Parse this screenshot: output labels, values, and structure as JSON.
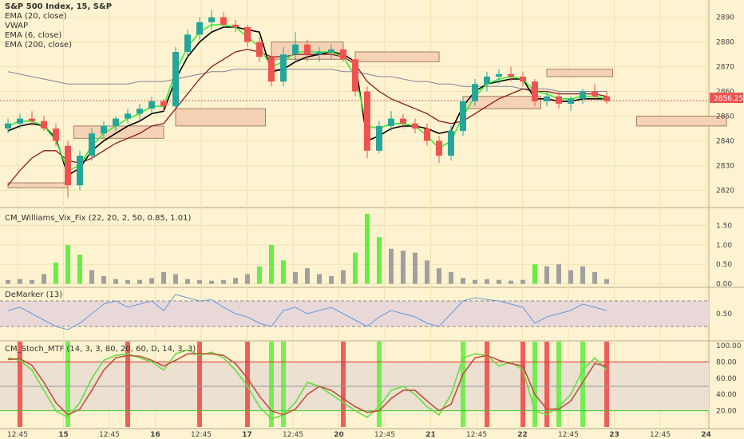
{
  "chart_data": {
    "type": "candlestick",
    "colors": {
      "background": "#fdf3d0",
      "grid": "#f0e2b0",
      "up": "#26a69a",
      "down": "#ef5350",
      "ema20": "#33ee33",
      "vwap": "#000000",
      "ema200": "#8a7f9a",
      "ema200_line": "#8b1a1a",
      "zone_fill": "#f6d2b4",
      "zone_stroke": "#a08060",
      "vix_green": "#66ee44",
      "vix_gray": "#a0a0a0",
      "price_label_bg": "#ef5350",
      "stoch_k": "#66dd44",
      "stoch_d": "#c05040",
      "stoch_up_bar": "#66ee44",
      "stoch_down_bar": "#ee4444",
      "demarker_line": "#6a9ad8",
      "band_fill": "#e8d8d8"
    },
    "x_tick_labels": [
      "12:45",
      "15",
      "12:45",
      "16",
      "12:45",
      "17",
      "12:45",
      "20",
      "12:45",
      "21",
      "12:45",
      "22",
      "12:45",
      "23",
      "12:45",
      "24"
    ],
    "x_tick_bold": [
      false,
      true,
      false,
      true,
      false,
      true,
      false,
      true,
      false,
      true,
      false,
      true,
      false,
      true,
      false,
      true
    ],
    "price_panel": {
      "title": "S&P 500 Index, 15, S&P",
      "indicators": [
        "EMA (20, close)",
        "VWAP",
        "EMA (6, close)",
        "EMA (200, close)"
      ],
      "y_ticks": [
        2820,
        2830,
        2840,
        2850,
        2860,
        2870,
        2880,
        2890
      ],
      "ylim": [
        2813,
        2897
      ],
      "last_price": "2856.25",
      "candles": [
        {
          "o": 2845,
          "h": 2849,
          "l": 2843,
          "c": 2847
        },
        {
          "o": 2847,
          "h": 2851,
          "l": 2845,
          "c": 2849
        },
        {
          "o": 2849,
          "h": 2852,
          "l": 2846,
          "c": 2848
        },
        {
          "o": 2848,
          "h": 2850,
          "l": 2844,
          "c": 2845
        },
        {
          "o": 2845,
          "h": 2847,
          "l": 2838,
          "c": 2840
        },
        {
          "o": 2838,
          "h": 2840,
          "l": 2817,
          "c": 2822
        },
        {
          "o": 2822,
          "h": 2836,
          "l": 2820,
          "c": 2834
        },
        {
          "o": 2834,
          "h": 2845,
          "l": 2832,
          "c": 2843
        },
        {
          "o": 2843,
          "h": 2848,
          "l": 2841,
          "c": 2846
        },
        {
          "o": 2846,
          "h": 2850,
          "l": 2844,
          "c": 2849
        },
        {
          "o": 2849,
          "h": 2853,
          "l": 2847,
          "c": 2851
        },
        {
          "o": 2851,
          "h": 2855,
          "l": 2848,
          "c": 2853
        },
        {
          "o": 2853,
          "h": 2858,
          "l": 2851,
          "c": 2856
        },
        {
          "o": 2856,
          "h": 2857,
          "l": 2852,
          "c": 2854
        },
        {
          "o": 2854,
          "h": 2878,
          "l": 2853,
          "c": 2876
        },
        {
          "o": 2876,
          "h": 2885,
          "l": 2874,
          "c": 2883
        },
        {
          "o": 2883,
          "h": 2890,
          "l": 2881,
          "c": 2888
        },
        {
          "o": 2888,
          "h": 2893,
          "l": 2885,
          "c": 2890
        },
        {
          "o": 2890,
          "h": 2892,
          "l": 2886,
          "c": 2887
        },
        {
          "o": 2887,
          "h": 2889,
          "l": 2884,
          "c": 2886
        },
        {
          "o": 2886,
          "h": 2887,
          "l": 2878,
          "c": 2880
        },
        {
          "o": 2880,
          "h": 2882,
          "l": 2872,
          "c": 2874
        },
        {
          "o": 2874,
          "h": 2876,
          "l": 2862,
          "c": 2864
        },
        {
          "o": 2864,
          "h": 2878,
          "l": 2862,
          "c": 2875
        },
        {
          "o": 2875,
          "h": 2884,
          "l": 2872,
          "c": 2879
        },
        {
          "o": 2879,
          "h": 2881,
          "l": 2872,
          "c": 2875
        },
        {
          "o": 2875,
          "h": 2878,
          "l": 2872,
          "c": 2876
        },
        {
          "o": 2876,
          "h": 2879,
          "l": 2873,
          "c": 2877
        },
        {
          "o": 2877,
          "h": 2878,
          "l": 2872,
          "c": 2873
        },
        {
          "o": 2873,
          "h": 2874,
          "l": 2858,
          "c": 2860
        },
        {
          "o": 2860,
          "h": 2862,
          "l": 2833,
          "c": 2836
        },
        {
          "o": 2836,
          "h": 2848,
          "l": 2835,
          "c": 2846
        },
        {
          "o": 2846,
          "h": 2852,
          "l": 2844,
          "c": 2849
        },
        {
          "o": 2849,
          "h": 2851,
          "l": 2845,
          "c": 2847
        },
        {
          "o": 2847,
          "h": 2849,
          "l": 2843,
          "c": 2845
        },
        {
          "o": 2845,
          "h": 2847,
          "l": 2838,
          "c": 2840
        },
        {
          "o": 2840,
          "h": 2842,
          "l": 2831,
          "c": 2834
        },
        {
          "o": 2834,
          "h": 2846,
          "l": 2832,
          "c": 2844
        },
        {
          "o": 2844,
          "h": 2858,
          "l": 2842,
          "c": 2856
        },
        {
          "o": 2856,
          "h": 2865,
          "l": 2854,
          "c": 2863
        },
        {
          "o": 2863,
          "h": 2868,
          "l": 2860,
          "c": 2866
        },
        {
          "o": 2866,
          "h": 2869,
          "l": 2863,
          "c": 2867
        },
        {
          "o": 2867,
          "h": 2870,
          "l": 2864,
          "c": 2866
        },
        {
          "o": 2866,
          "h": 2868,
          "l": 2862,
          "c": 2864
        },
        {
          "o": 2864,
          "h": 2865,
          "l": 2854,
          "c": 2856
        },
        {
          "o": 2856,
          "h": 2860,
          "l": 2854,
          "c": 2858
        },
        {
          "o": 2858,
          "h": 2860,
          "l": 2853,
          "c": 2855
        },
        {
          "o": 2855,
          "h": 2858,
          "l": 2852,
          "c": 2857
        },
        {
          "o": 2857,
          "h": 2861,
          "l": 2855,
          "c": 2860
        },
        {
          "o": 2860,
          "h": 2863,
          "l": 2857,
          "c": 2858
        },
        {
          "o": 2858,
          "h": 2860,
          "l": 2855,
          "c": 2856
        }
      ],
      "ema20": [
        2846,
        2848,
        2848,
        2846,
        2840,
        2828,
        2830,
        2838,
        2843,
        2846,
        2849,
        2851,
        2854,
        2854,
        2868,
        2878,
        2884,
        2887,
        2887,
        2886,
        2882,
        2878,
        2870,
        2872,
        2876,
        2876,
        2876,
        2876,
        2874,
        2866,
        2846,
        2845,
        2847,
        2847,
        2846,
        2842,
        2837,
        2840,
        2850,
        2858,
        2863,
        2865,
        2866,
        2865,
        2860,
        2859,
        2857,
        2857,
        2858,
        2858,
        2857
      ],
      "vwap": [
        2844,
        2846,
        2847,
        2846,
        2841,
        2826,
        2829,
        2836,
        2840,
        2843,
        2846,
        2848,
        2851,
        2852,
        2865,
        2874,
        2880,
        2884,
        2886,
        2886,
        2885,
        2884,
        2868,
        2869,
        2872,
        2874,
        2875,
        2876,
        2875,
        2872,
        2840,
        2842,
        2845,
        2846,
        2846,
        2845,
        2843,
        2844,
        2854,
        2860,
        2863,
        2864,
        2865,
        2865,
        2857,
        2857,
        2856,
        2856,
        2857,
        2857,
        2857
      ],
      "ema200_gray": [
        2868,
        2867,
        2866,
        2865,
        2864,
        2863,
        2863,
        2863,
        2863,
        2863,
        2863,
        2864,
        2864,
        2864,
        2865,
        2866,
        2867,
        2868,
        2868,
        2869,
        2869,
        2869,
        2869,
        2869,
        2869,
        2869,
        2869,
        2869,
        2868,
        2868,
        2867,
        2866,
        2866,
        2865,
        2864,
        2864,
        2863,
        2863,
        2862,
        2862,
        2862,
        2862,
        2862,
        2861,
        2861,
        2861,
        2860,
        2860,
        2860,
        2860,
        2860
      ],
      "ema_slow": [
        2822,
        2828,
        2833,
        2836,
        2836,
        2832,
        2831,
        2833,
        2836,
        2839,
        2841,
        2843,
        2846,
        2847,
        2853,
        2859,
        2865,
        2870,
        2873,
        2876,
        2877,
        2876,
        2874,
        2874,
        2875,
        2875,
        2875,
        2875,
        2874,
        2871,
        2864,
        2860,
        2857,
        2855,
        2853,
        2851,
        2848,
        2847,
        2848,
        2851,
        2854,
        2857,
        2859,
        2861,
        2860,
        2860,
        2859,
        2859,
        2859,
        2859,
        2858
      ],
      "zones": [
        {
          "i0": 0,
          "i1": 5,
          "lo": 2821,
          "hi": 2823
        },
        {
          "i0": 5.5,
          "i1": 13,
          "lo": 2841,
          "hi": 2846
        },
        {
          "i0": 14,
          "i1": 21.5,
          "lo": 2846,
          "hi": 2853
        },
        {
          "i0": 22,
          "i1": 28,
          "lo": 2873,
          "hi": 2880
        },
        {
          "i0": 29,
          "i1": 36,
          "lo": 2872,
          "hi": 2876
        },
        {
          "i0": 38,
          "i1": 44.5,
          "lo": 2853,
          "hi": 2858
        },
        {
          "i0": 45,
          "i1": 50.5,
          "lo": 2866,
          "hi": 2869
        },
        {
          "i0": 52.5,
          "i1": 60,
          "lo": 2846,
          "hi": 2850
        }
      ]
    },
    "vix_panel": {
      "title": "CM_Williams_Vix_Fix (22, 20, 2, 50, 0.85, 1.01)",
      "y_ticks": [
        0.0,
        0.5,
        1.0,
        1.5
      ],
      "ylim": [
        -0.05,
        1.9
      ],
      "values": [
        0.1,
        0.12,
        0.1,
        0.25,
        0.55,
        1.0,
        0.75,
        0.35,
        0.2,
        0.12,
        0.1,
        0.1,
        0.15,
        0.3,
        0.25,
        0.12,
        0.1,
        0.08,
        0.1,
        0.15,
        0.25,
        0.45,
        1.0,
        0.6,
        0.3,
        0.4,
        0.25,
        0.2,
        0.35,
        0.8,
        1.8,
        1.2,
        0.9,
        0.85,
        0.8,
        0.6,
        0.4,
        0.3,
        0.15,
        0.1,
        0.12,
        0.1,
        0.08,
        0.1,
        0.5,
        0.45,
        0.5,
        0.35,
        0.45,
        0.3,
        0.12
      ],
      "green": [
        false,
        false,
        false,
        false,
        true,
        true,
        true,
        false,
        false,
        false,
        false,
        false,
        false,
        false,
        false,
        false,
        false,
        false,
        false,
        false,
        false,
        true,
        true,
        true,
        false,
        false,
        false,
        false,
        false,
        true,
        true,
        true,
        false,
        false,
        false,
        false,
        false,
        false,
        false,
        false,
        false,
        false,
        false,
        false,
        true,
        false,
        false,
        false,
        false,
        false,
        false
      ]
    },
    "demarker_panel": {
      "title": "DeMarker (13)",
      "y_ticks": [
        0.5
      ],
      "ylim": [
        0.1,
        0.9
      ],
      "band": [
        0.3,
        0.7
      ],
      "values": [
        0.55,
        0.6,
        0.5,
        0.4,
        0.3,
        0.25,
        0.35,
        0.5,
        0.65,
        0.7,
        0.6,
        0.65,
        0.7,
        0.55,
        0.8,
        0.75,
        0.7,
        0.72,
        0.6,
        0.5,
        0.45,
        0.35,
        0.3,
        0.55,
        0.6,
        0.5,
        0.55,
        0.6,
        0.5,
        0.4,
        0.3,
        0.45,
        0.55,
        0.5,
        0.45,
        0.35,
        0.3,
        0.5,
        0.7,
        0.75,
        0.72,
        0.7,
        0.65,
        0.6,
        0.35,
        0.45,
        0.5,
        0.55,
        0.65,
        0.6,
        0.55
      ]
    },
    "stoch_panel": {
      "title": "CM_Stoch_MTF (14, 3, 3, 80, 20, 60, D, 14, 3, 3)",
      "y_ticks": [
        20,
        40,
        60,
        80,
        100
      ],
      "ylim": [
        0,
        105
      ],
      "upper": 80,
      "lower": 20,
      "k": [
        85,
        82,
        70,
        45,
        20,
        12,
        30,
        60,
        82,
        88,
        90,
        85,
        80,
        70,
        90,
        95,
        88,
        92,
        85,
        70,
        50,
        25,
        10,
        15,
        30,
        55,
        50,
        40,
        30,
        20,
        12,
        25,
        45,
        50,
        40,
        25,
        15,
        40,
        85,
        90,
        88,
        75,
        80,
        70,
        20,
        15,
        25,
        40,
        70,
        85,
        70
      ],
      "d": [
        83,
        84,
        76,
        55,
        30,
        15,
        22,
        45,
        70,
        85,
        88,
        87,
        82,
        75,
        82,
        90,
        90,
        90,
        88,
        78,
        60,
        38,
        20,
        15,
        22,
        40,
        50,
        45,
        35,
        25,
        18,
        20,
        35,
        45,
        45,
        32,
        20,
        28,
        65,
        85,
        88,
        82,
        78,
        75,
        40,
        22,
        22,
        32,
        55,
        78,
        75
      ],
      "up_bars": [
        5,
        22,
        23,
        31,
        38,
        44,
        46,
        48
      ],
      "down_bars": [
        1,
        10,
        16,
        20,
        28,
        40,
        43,
        45,
        50
      ]
    }
  }
}
